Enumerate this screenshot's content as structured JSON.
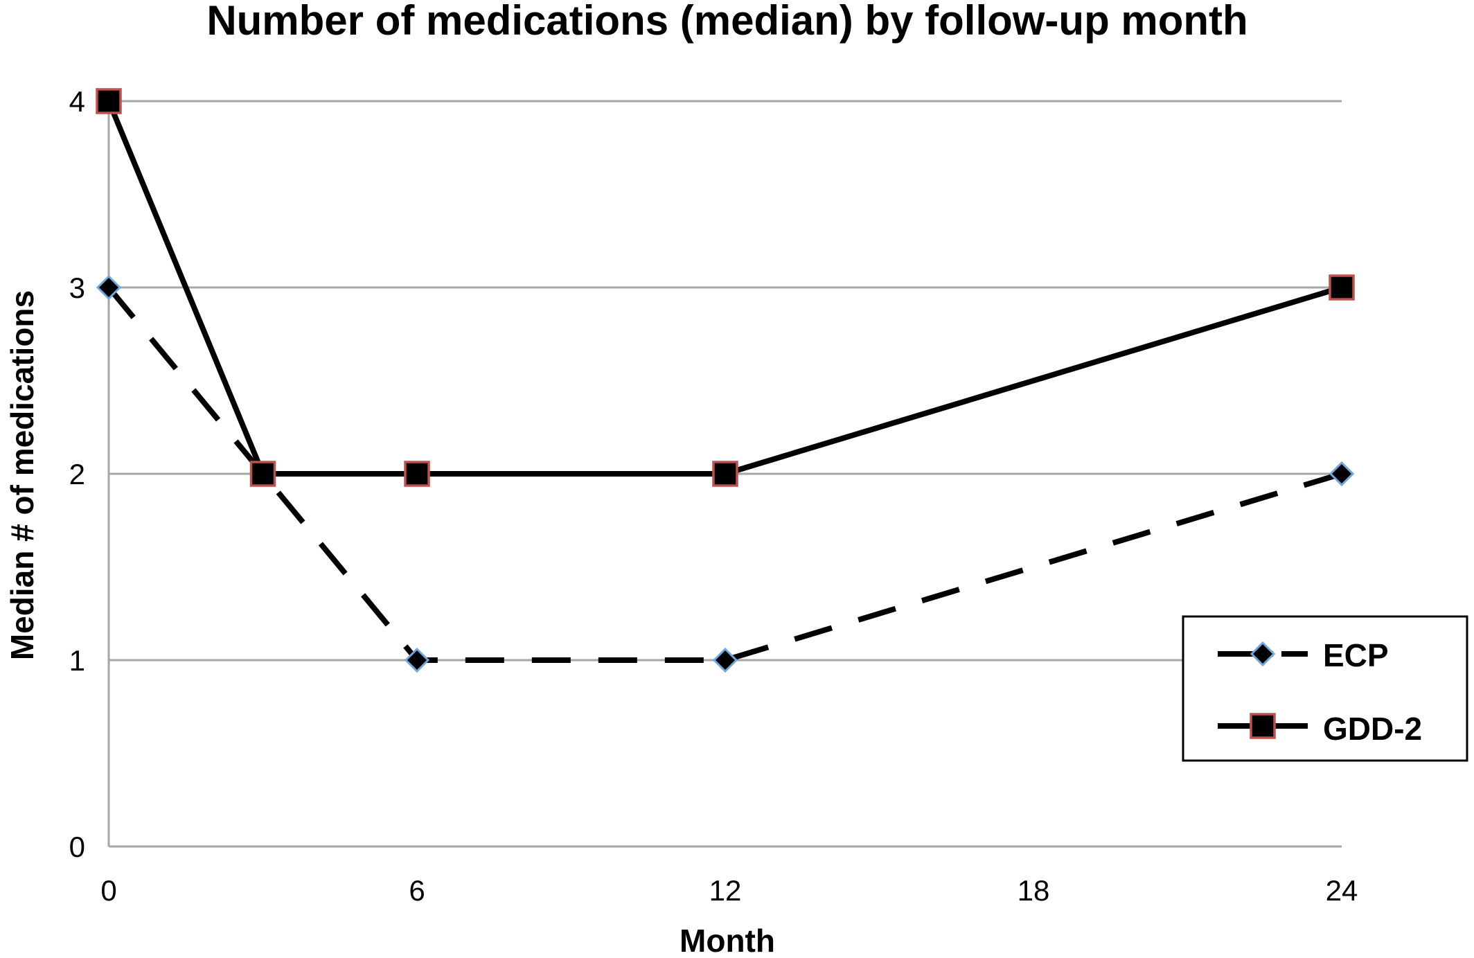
{
  "chart_data": {
    "type": "line",
    "title": "Number of medications (median) by follow-up month",
    "xlabel": "Month",
    "ylabel": "Median # of medications",
    "xlim": [
      0,
      24
    ],
    "ylim": [
      0,
      4
    ],
    "xticks": [
      0,
      6,
      12,
      18,
      24
    ],
    "yticks": [
      0,
      1,
      2,
      3,
      4
    ],
    "grid": "horizontal",
    "legend_position": "right",
    "series": [
      {
        "name": "ECP",
        "x": [
          0,
          3,
          6,
          12,
          24
        ],
        "values": [
          3,
          2,
          1,
          1,
          2
        ],
        "line_style": "dashed",
        "marker": "diamond",
        "marker_fill": "#000000",
        "marker_edge": "#6fa8dc",
        "line_color": "#000000"
      },
      {
        "name": "GDD-2",
        "x": [
          0,
          3,
          6,
          12,
          24
        ],
        "values": [
          4,
          2,
          2,
          2,
          3
        ],
        "line_style": "solid",
        "marker": "square",
        "marker_fill": "#000000",
        "marker_edge": "#c0504d",
        "line_color": "#000000"
      }
    ]
  },
  "colors": {
    "grid": "#a6a6a6",
    "axis": "#a6a6a6",
    "legend_border": "#000000"
  }
}
